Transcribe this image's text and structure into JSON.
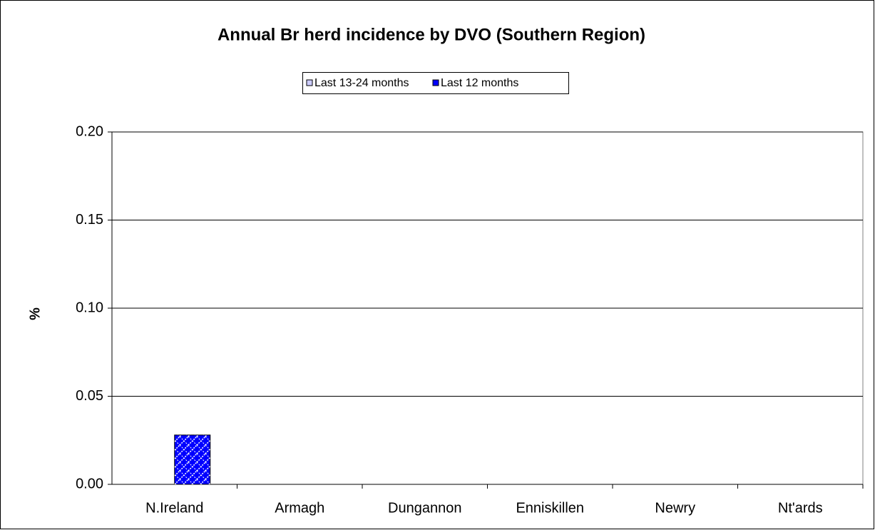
{
  "chart_data": {
    "type": "bar",
    "title": "Annual Br herd incidence by DVO (Southern Region)",
    "y_label": "%",
    "categories": [
      "N.Ireland",
      "Armagh",
      "Dungannon",
      "Enniskillen",
      "Newry",
      "Nt'ards"
    ],
    "series": [
      {
        "name": "Last 13-24 months",
        "color": "#ccccff",
        "values": [
          0,
          0,
          0,
          0,
          0,
          0
        ]
      },
      {
        "name": "Last 12 months",
        "color": "#0000ff",
        "values": [
          0.028,
          0,
          0,
          0,
          0,
          0
        ]
      }
    ],
    "ylim": [
      0,
      0.2
    ],
    "yticks": [
      {
        "value": 0,
        "label": "0.00"
      },
      {
        "value": 0.05,
        "label": "0.05"
      },
      {
        "value": 0.1,
        "label": "0.10"
      },
      {
        "value": 0.15,
        "label": "0.15"
      },
      {
        "value": 0.2,
        "label": "0.20"
      }
    ],
    "grid": true,
    "legend": "top"
  }
}
